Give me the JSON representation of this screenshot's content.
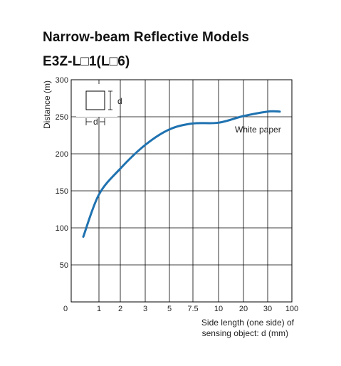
{
  "header": {
    "title": "Narrow-beam Reflective Models",
    "subtitle": "E3Z-L□1(L□6)"
  },
  "chart_data": {
    "type": "line",
    "title": "Narrow-beam Reflective Models",
    "subtitle": "E3Z-L□1(L□6)",
    "ylabel": "Distance (m)",
    "xlabel_line1": "Side length (one side) of",
    "xlabel_line2": "sensing object: d (mm)",
    "ylim": [
      0,
      300
    ],
    "yticks": [
      0,
      50,
      100,
      150,
      200,
      250,
      300
    ],
    "xtick_labels": [
      "0",
      "1",
      "2",
      "3",
      "5",
      "7.5",
      "10",
      "20",
      "30",
      "100"
    ],
    "grid": true,
    "series": [
      {
        "name": "White paper",
        "color": "#1f72b0",
        "points": [
          {
            "x": "0.5",
            "y": 88
          },
          {
            "x": "1",
            "y": 145
          },
          {
            "x": "2",
            "y": 180
          },
          {
            "x": "3",
            "y": 212
          },
          {
            "x": "5",
            "y": 233
          },
          {
            "x": "7.5",
            "y": 241
          },
          {
            "x": "10",
            "y": 242
          },
          {
            "x": "20",
            "y": 251
          },
          {
            "x": "30",
            "y": 257
          },
          {
            "x": "100",
            "y": 257
          }
        ]
      }
    ],
    "inset_label": "d"
  }
}
